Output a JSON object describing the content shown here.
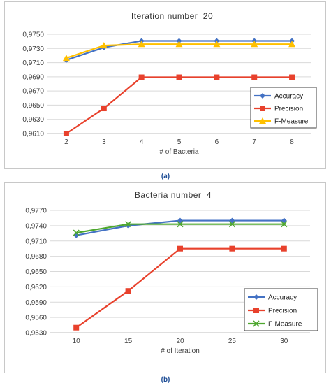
{
  "captions": [
    "(a)",
    "(b)"
  ],
  "colors": {
    "accuracy": "#4472c4",
    "precision": "#e8412c",
    "fmeasure_a": "#ffc000",
    "fmeasure_b": "#4ea72e"
  },
  "chart_data": [
    {
      "type": "line",
      "title": "Iteration number=20",
      "xlabel": "# of Bacteria",
      "ylabel": "",
      "x": [
        2,
        3,
        4,
        5,
        6,
        7,
        8
      ],
      "x_ticks": [
        "2",
        "3",
        "4",
        "5",
        "6",
        "7",
        "8"
      ],
      "y_ticks": [
        "0,9610",
        "0,9630",
        "0,9650",
        "0,9670",
        "0,9690",
        "0,9710",
        "0,9730",
        "0,9750"
      ],
      "ylim": [
        0.961,
        0.976
      ],
      "grid": true,
      "legend_position": "right",
      "series": [
        {
          "name": "Accuracy",
          "color": "#4472c4",
          "marker": "diamond",
          "values": [
            0.9721,
            0.974,
            0.975,
            0.975,
            0.975,
            0.975,
            0.975
          ]
        },
        {
          "name": "Precision",
          "color": "#e8412c",
          "marker": "square",
          "values": [
            0.961,
            0.9648,
            0.9695,
            0.9695,
            0.9695,
            0.9695,
            0.9695
          ]
        },
        {
          "name": "F-Measure",
          "color": "#ffc000",
          "marker": "triangle",
          "values": [
            0.9724,
            0.9743,
            0.9745,
            0.9745,
            0.9745,
            0.9745,
            0.9745
          ]
        }
      ]
    },
    {
      "type": "line",
      "title": "Bacteria number=4",
      "xlabel": "# of Iteration",
      "ylabel": "",
      "x": [
        10,
        15,
        20,
        25,
        30
      ],
      "x_ticks": [
        "10",
        "15",
        "20",
        "25",
        "30"
      ],
      "y_ticks": [
        "0,9530",
        "0,9560",
        "0,9590",
        "0,9620",
        "0,9650",
        "0,9680",
        "0,9710",
        "0,9740",
        "0,9770"
      ],
      "ylim": [
        0.953,
        0.977
      ],
      "grid": true,
      "legend_position": "right",
      "series": [
        {
          "name": "Accuracy",
          "color": "#4472c4",
          "marker": "diamond",
          "values": [
            0.9721,
            0.974,
            0.975,
            0.975,
            0.975
          ]
        },
        {
          "name": "Precision",
          "color": "#e8412c",
          "marker": "square",
          "values": [
            0.954,
            0.9612,
            0.9695,
            0.9695,
            0.9695
          ]
        },
        {
          "name": "F-Measure",
          "color": "#4ea72e",
          "marker": "x",
          "values": [
            0.9726,
            0.9743,
            0.9743,
            0.9743,
            0.9743
          ]
        }
      ]
    }
  ]
}
